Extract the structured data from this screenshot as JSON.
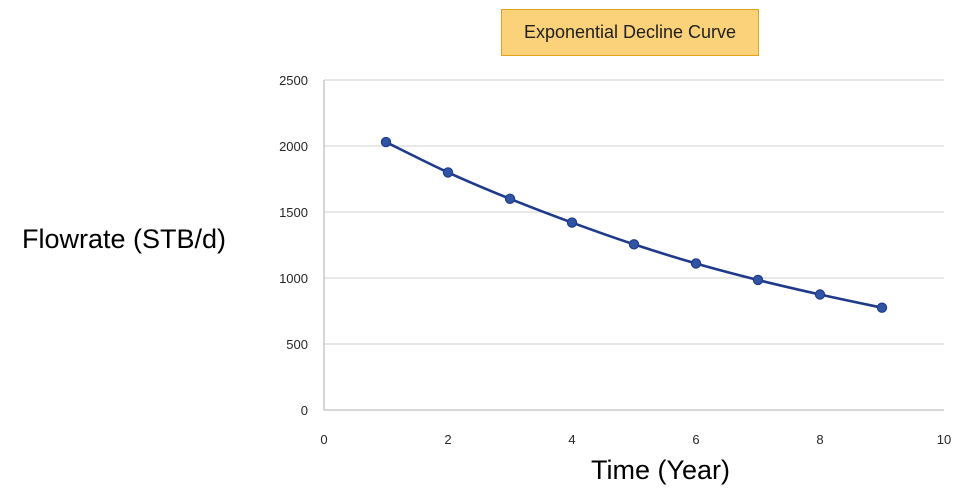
{
  "chart_data": {
    "type": "line",
    "title": "Exponential Decline Curve",
    "xlabel": "Time (Year)",
    "ylabel": "Flowrate (STB/d)",
    "xlim": [
      0,
      10
    ],
    "ylim": [
      0,
      2500
    ],
    "xticks": [
      0,
      2,
      4,
      6,
      8,
      10
    ],
    "yticks": [
      0,
      500,
      1000,
      1500,
      2000,
      2500
    ],
    "grid": "horizontal",
    "legend": "none",
    "series": [
      {
        "color": "#1f3a8a",
        "marker_color": "#2f55a4",
        "x": [
          1,
          2,
          3,
          4,
          5,
          6,
          7,
          8,
          9
        ],
        "y": [
          2030,
          1800,
          1600,
          1420,
          1255,
          1110,
          985,
          875,
          775
        ]
      }
    ]
  },
  "colors": {
    "title_fill": "#fbd17a",
    "title_border": "#e3a21a",
    "gridline": "#d0d0d0",
    "axis": "#bfbfbf"
  }
}
